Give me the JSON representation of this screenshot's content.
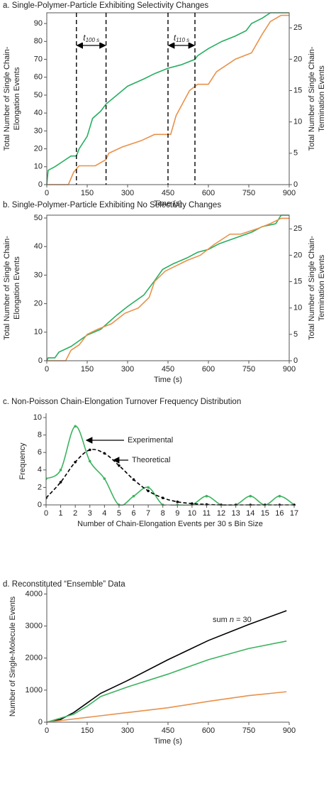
{
  "chart_data": [
    {
      "type": "line",
      "title": "a. Single-Polymer-Particle Exhibiting Selectivity Changes",
      "xlabel": "Time (s)",
      "ylabel": [
        "Total Number of Single Chain-",
        "Elongation Events"
      ],
      "y2label": [
        "Total Number of Single Chain-",
        "Termination Events"
      ],
      "xlim": [
        0,
        900
      ],
      "xticks": [
        0,
        150,
        300,
        450,
        600,
        750,
        900
      ],
      "ylim": [
        0,
        96
      ],
      "yticks": [
        0,
        10,
        20,
        30,
        40,
        50,
        60,
        70,
        80,
        90
      ],
      "y2lim": [
        0,
        27.4
      ],
      "y2ticks": [
        0,
        5,
        10,
        15,
        20,
        25
      ],
      "frame": "box",
      "vlines": [
        110,
        220,
        450,
        550
      ],
      "intervals": [
        [
          "t",
          "100 s"
        ],
        [
          "t",
          "110 s"
        ]
      ],
      "series": [
        {
          "color": "#27ae60",
          "x": [
            0,
            5,
            30,
            60,
            90,
            110,
            120,
            150,
            170,
            200,
            220,
            260,
            300,
            360,
            400,
            450,
            500,
            550,
            560,
            600,
            650,
            700,
            740,
            760,
            800,
            830,
            900
          ],
          "values": [
            0,
            8,
            10,
            13,
            16,
            16,
            20,
            27,
            37,
            41,
            45,
            50,
            55,
            59,
            62,
            65,
            67,
            70,
            72,
            76,
            80,
            83,
            86,
            90,
            93,
            96,
            96
          ]
        },
        {
          "color": "#e8914a",
          "axis": "y2",
          "x": [
            0,
            80,
            100,
            120,
            180,
            220,
            230,
            280,
            350,
            400,
            460,
            480,
            530,
            560,
            600,
            630,
            700,
            760,
            800,
            830,
            870,
            900
          ],
          "values": [
            0,
            0,
            2,
            3,
            3,
            4,
            5,
            6,
            7,
            8,
            8,
            11,
            15,
            16,
            16,
            18,
            20,
            21,
            24,
            26,
            27,
            27
          ]
        }
      ]
    },
    {
      "type": "line",
      "title": "b. Single-Polymer-Particle Exhibiting No Selectivity Changes",
      "xlabel": "Time (s)",
      "ylabel": [
        "Total Number of Single Chain-",
        "Elongation Events"
      ],
      "y2label": [
        "Total Number of Single Chain-",
        "Termination Events"
      ],
      "xlim": [
        0,
        900
      ],
      "xticks": [
        0,
        150,
        300,
        450,
        600,
        750,
        900
      ],
      "ylim": [
        0,
        51
      ],
      "yticks": [
        0,
        10,
        20,
        30,
        40,
        50
      ],
      "y2lim": [
        0,
        27.6
      ],
      "y2ticks": [
        0,
        5,
        10,
        15,
        20,
        25
      ],
      "frame": "box",
      "series": [
        {
          "color": "#27ae60",
          "x": [
            0,
            5,
            30,
            45,
            90,
            120,
            150,
            200,
            260,
            300,
            360,
            400,
            430,
            470,
            520,
            560,
            600,
            640,
            700,
            760,
            800,
            850,
            870,
            900
          ],
          "values": [
            0,
            1,
            1,
            3,
            5,
            7,
            9,
            11,
            16,
            19,
            23,
            28,
            32,
            34,
            36,
            38,
            39,
            41,
            43,
            45,
            47,
            48,
            51,
            51
          ]
        },
        {
          "color": "#e8914a",
          "axis": "y2",
          "x": [
            0,
            70,
            90,
            120,
            150,
            190,
            240,
            290,
            340,
            380,
            400,
            440,
            480,
            520,
            570,
            620,
            680,
            720,
            780,
            830,
            870,
            900
          ],
          "values": [
            0,
            0,
            2,
            3,
            5,
            6,
            7,
            9,
            10,
            12,
            15,
            17,
            18,
            19,
            20,
            22,
            24,
            24,
            25,
            26,
            27,
            27
          ]
        }
      ]
    },
    {
      "type": "line",
      "title": "c. Non-Poisson Chain-Elongation Turnover Frequency Distribution",
      "xlabel": "Number of Chain-Elongation Events per 30 s Bin Size",
      "ylabel": [
        "Frequency"
      ],
      "xlim": [
        0,
        17
      ],
      "xticks": [
        0,
        1,
        2,
        3,
        4,
        5,
        6,
        7,
        8,
        9,
        10,
        11,
        12,
        13,
        14,
        15,
        16,
        17
      ],
      "ylim": [
        0,
        10
      ],
      "yticks": [
        0,
        2,
        4,
        6,
        8,
        10
      ],
      "frame": "axes",
      "smooth": true,
      "annotations": [
        "Experimental",
        "Theoretical"
      ],
      "series": [
        {
          "color": "#3cb35f",
          "markers": true,
          "x": [
            0,
            1,
            2,
            3,
            4,
            5,
            6,
            7,
            8,
            9,
            10,
            11,
            12,
            13,
            14,
            15,
            16,
            17
          ],
          "values": [
            3,
            4,
            9,
            5,
            3,
            0,
            1,
            2,
            0,
            0,
            0,
            1,
            0,
            0,
            1,
            0,
            1,
            0
          ]
        },
        {
          "color": "#000000",
          "dash": true,
          "markers": true,
          "x": [
            0,
            1,
            2,
            3,
            4,
            5,
            6,
            7,
            8,
            9,
            10,
            11,
            12,
            13,
            14,
            15,
            16,
            17
          ],
          "values": [
            0.8,
            2.6,
            4.9,
            6.3,
            5.9,
            4.5,
            2.9,
            1.6,
            0.8,
            0.35,
            0.15,
            0.05,
            0,
            0,
            0,
            0,
            0,
            0
          ]
        }
      ]
    },
    {
      "type": "line",
      "title": "d. Reconstituted “Ensemble” Data",
      "xlabel": "Time (s)",
      "ylabel": [
        "Number of Single-Molecule Events"
      ],
      "xlim": [
        0,
        900
      ],
      "xticks": [
        0,
        150,
        300,
        450,
        600,
        750,
        900
      ],
      "ylim": [
        0,
        4100
      ],
      "yticks": [
        0,
        1000,
        2000,
        3000,
        4000
      ],
      "frame": "axes",
      "note": [
        "sum ",
        "n",
        " = 30"
      ],
      "series": [
        {
          "color": "#000000",
          "x": [
            0,
            50,
            100,
            150,
            200,
            300,
            450,
            600,
            750,
            890
          ],
          "values": [
            0,
            80,
            300,
            600,
            900,
            1300,
            1950,
            2550,
            3050,
            3480
          ]
        },
        {
          "color": "#3cb35f",
          "x": [
            0,
            100,
            150,
            200,
            300,
            450,
            600,
            750,
            890
          ],
          "values": [
            0,
            250,
            500,
            800,
            1100,
            1500,
            1950,
            2300,
            2530
          ]
        },
        {
          "color": "#e8914a",
          "x": [
            0,
            100,
            150,
            300,
            450,
            600,
            750,
            890
          ],
          "values": [
            0,
            100,
            150,
            300,
            450,
            650,
            830,
            950
          ]
        }
      ]
    }
  ]
}
